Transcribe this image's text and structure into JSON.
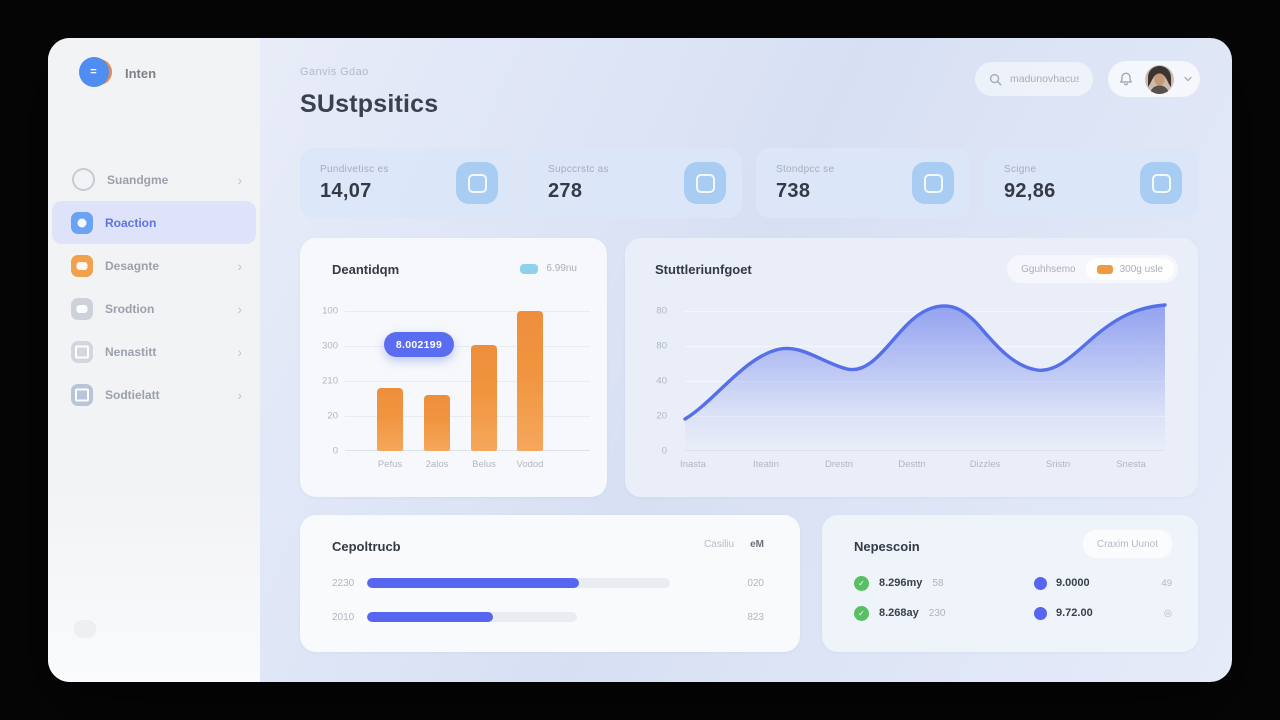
{
  "app": {
    "breadcrumb": "Ganvis Gdao",
    "page_title": "SUstpsitics"
  },
  "logo": {
    "name": "Inten",
    "mark_glyph": "="
  },
  "header": {
    "search_text": "madunovhacus"
  },
  "sidebar": {
    "chevron": "›",
    "items": [
      {
        "label": "Suandgme",
        "active": false
      },
      {
        "label": "Roaction",
        "active": true
      },
      {
        "label": "Desagnte",
        "active": false
      },
      {
        "label": "Srodtion",
        "active": false
      },
      {
        "label": "Nenastitt",
        "active": false
      },
      {
        "label": "Sodtielatt",
        "active": false
      }
    ],
    "footer_ghost": "···"
  },
  "stats": {
    "cards": [
      {
        "label": "Pundivetisc es",
        "value": "14,07"
      },
      {
        "label": "Supccrstc as",
        "value": "278"
      },
      {
        "label": "Stondpcc se",
        "value": "738"
      },
      {
        "label": "Scigne",
        "value": "92,86"
      }
    ]
  },
  "progress_card": {
    "title": "Cepoltrucb",
    "tab_a": "Casiliu",
    "tab_b": "eM",
    "rows": [
      {
        "label": "2230",
        "value": "020",
        "pct": 70
      },
      {
        "label": "2010",
        "value": "823",
        "pct": 60
      }
    ]
  },
  "list_card": {
    "title": "Nepescoin",
    "badge": "Craxim Uunot",
    "check_glyph": "✓",
    "rows": [
      {
        "left": "8.296my",
        "left_sub": "58",
        "mid": "9.0000",
        "right": "49"
      },
      {
        "left": "8.268ay",
        "left_sub": "230",
        "mid": "9.72.00",
        "right": "◎"
      }
    ]
  },
  "chart_data": [
    {
      "type": "bar",
      "title": "Deantidqm",
      "categories": [
        "Pefus",
        "2alos",
        "Belus",
        "Vodod"
      ],
      "values": [
        45,
        40,
        76,
        100
      ],
      "ylim": [
        0,
        100
      ],
      "y_ticks": [
        "100",
        "300",
        "210",
        "20",
        "0"
      ],
      "legend": [
        "6.99nu"
      ],
      "legend_color": "#8ed1ea",
      "bar_color": "#f0953f",
      "tooltip_value": "8.002199",
      "grid": true,
      "legend_position": "top-right"
    },
    {
      "type": "line",
      "title": "Stuttleriunfgoet",
      "x": [
        "Inasta",
        "Iteatin",
        "Drestn",
        "Desttn",
        "Dizzles",
        "Sristn",
        "Snesta"
      ],
      "values": [
        17,
        57,
        46,
        78,
        62,
        45,
        80
      ],
      "ylim": [
        0,
        80
      ],
      "y_ticks": [
        "80",
        "80",
        "40",
        "20",
        "0"
      ],
      "legend": [
        "Gguhhsemo",
        "300g usle"
      ],
      "line_color": "#5570e8",
      "fill": "blue-gradient",
      "grid": true,
      "legend_position": "top-right"
    }
  ],
  "colors": {
    "accent_blue": "#5b74e8",
    "progress_blue": "#5766ee",
    "tooltip_blue": "#5a6cf0",
    "bar_orange": "#f0953f",
    "legend_sky": "#8ed1ea",
    "legend_orange": "#f09a44",
    "success_green": "#58c062",
    "stat_icon_bg": "#a9ccf3",
    "window_bg": "#dbe3f5",
    "sidebar_bg": "#f2f3f5"
  }
}
